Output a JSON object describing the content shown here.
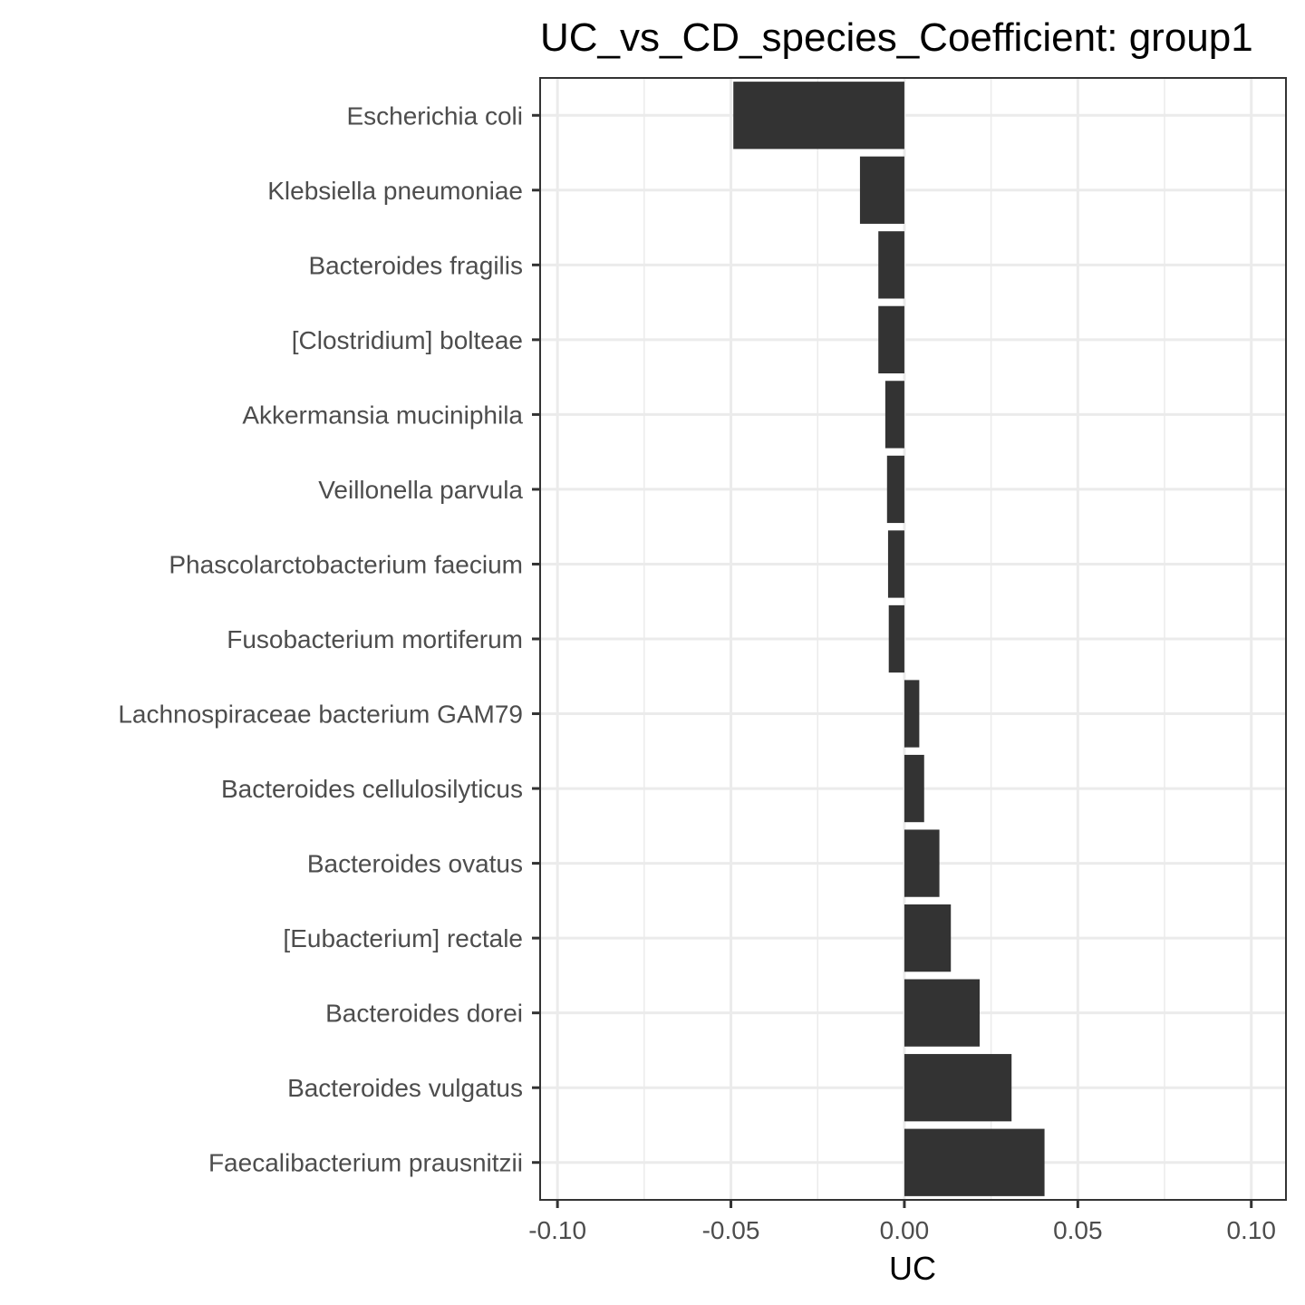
{
  "chart_data": {
    "type": "bar",
    "orientation": "horizontal",
    "title": "UC_vs_CD_species_Coefficient: group1",
    "xlabel": "UC",
    "ylabel": "",
    "xlim": [
      -0.105,
      0.11
    ],
    "xticks": [
      -0.1,
      -0.05,
      0.0,
      0.05,
      0.1
    ],
    "xtick_labels": [
      "-0.10",
      "-0.05",
      "0.00",
      "0.05",
      "0.10"
    ],
    "grid": true,
    "bar_color": "#333333",
    "categories": [
      "Escherichia coli",
      "Klebsiella pneumoniae",
      "Bacteroides fragilis",
      "[Clostridium] bolteae",
      "Akkermansia muciniphila",
      "Veillonella parvula",
      "Phascolarctobacterium faecium",
      "Fusobacterium mortiferum",
      "Lachnospiraceae bacterium GAM79",
      "Bacteroides cellulosilyticus",
      "Bacteroides ovatus",
      "[Eubacterium] rectale",
      "Bacteroides dorei",
      "Bacteroides vulgatus",
      "Faecalibacterium prausnitzii"
    ],
    "values": [
      -0.0493,
      -0.0128,
      -0.0075,
      -0.0075,
      -0.0055,
      -0.005,
      -0.0047,
      -0.0045,
      0.0043,
      0.0057,
      0.0101,
      0.0134,
      0.0217,
      0.0309,
      0.0404
    ]
  }
}
